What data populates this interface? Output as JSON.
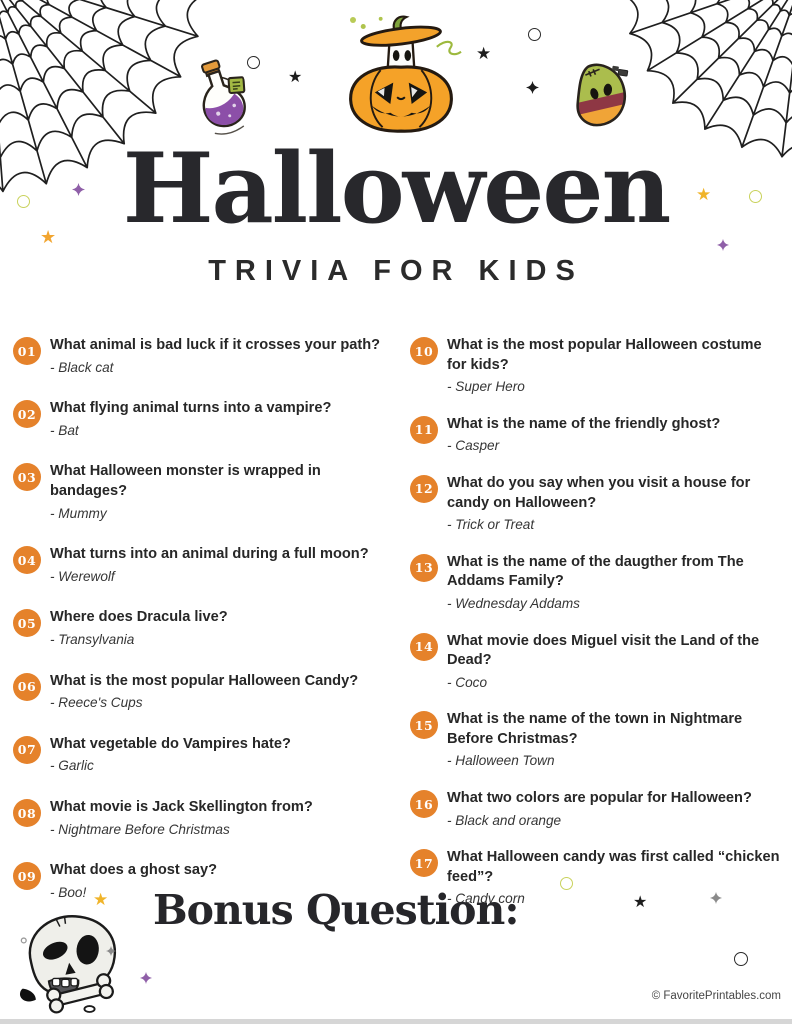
{
  "page": {
    "title": "Halloween",
    "subtitle": "TRIVIA FOR KIDS",
    "bonus_label": "Bonus Question:",
    "footer_credit": "© FavoritePrintables.com"
  },
  "questions": {
    "left": [
      {
        "num": "01",
        "question": "What animal is bad luck if it crosses your path?",
        "answer": "- Black cat"
      },
      {
        "num": "02",
        "question": "What flying animal turns into a vampire?",
        "answer": "- Bat"
      },
      {
        "num": "03",
        "question": "What Halloween monster is wrapped in bandages?",
        "answer": "- Mummy"
      },
      {
        "num": "04",
        "question": "What turns into an animal during a full moon?",
        "answer": "- Werewolf"
      },
      {
        "num": "05",
        "question": "Where does Dracula live?",
        "answer": "- Transylvania"
      },
      {
        "num": "06",
        "question": "What is the most popular Halloween Candy?",
        "answer": "- Reece's Cups"
      },
      {
        "num": "07",
        "question": "What vegetable do Vampires hate?",
        "answer": "- Garlic"
      },
      {
        "num": "08",
        "question": "What movie is Jack Skellington from?",
        "answer": "- Nightmare Before Christmas"
      },
      {
        "num": "09",
        "question": "What does a ghost say?",
        "answer": "- Boo!"
      }
    ],
    "right": [
      {
        "num": "10",
        "question": "What is the most popular Halloween costume for kids?",
        "answer": "- Super Hero"
      },
      {
        "num": "11",
        "question": "What is the name of the friendly ghost?",
        "answer": "- Casper"
      },
      {
        "num": "12",
        "question": "What do you say when you visit a house for candy on Halloween?",
        "answer": "- Trick or Treat"
      },
      {
        "num": "13",
        "question": "What is the name of the daugther from The Addams Family?",
        "answer": "- Wednesday Addams"
      },
      {
        "num": "14",
        "question": "What movie does Miguel visit the Land of the Dead?",
        "answer": "- Coco"
      },
      {
        "num": "15",
        "question": "What is the name of the town in Nightmare Before Christmas?",
        "answer": "- Halloween Town"
      },
      {
        "num": "16",
        "question": "What two colors are popular for Halloween?",
        "answer": "- Black and orange"
      },
      {
        "num": "17",
        "question": "What Halloween candy was first called “chicken feed”?",
        "answer": "- Candy corn"
      }
    ]
  },
  "icons": {
    "spider_web": "corner spider web line drawing",
    "jack_o_lantern": "pumpkin with ghost popping out of lifted lid",
    "potion_bottle": "tilted flask with purple potion and tag",
    "candy_corn": "frankenstein candy corn character",
    "skull_and_bone": "laughing skull with bone",
    "star": "five point star",
    "sparkle": "four point sparkle",
    "ring": "small circle outline"
  },
  "colors": {
    "badge_orange": "#E5822B",
    "pumpkin_orange": "#F5A228",
    "star_yellow": "#F0B42A",
    "star_orange": "#F2A530",
    "sparkle_purple": "#8F5FA8",
    "olive_ring": "#C9D25C",
    "potion_purple": "#8C4FA8",
    "candy_green": "#ABBD4D",
    "candy_maroon": "#8E3744",
    "ink": "#262626"
  }
}
